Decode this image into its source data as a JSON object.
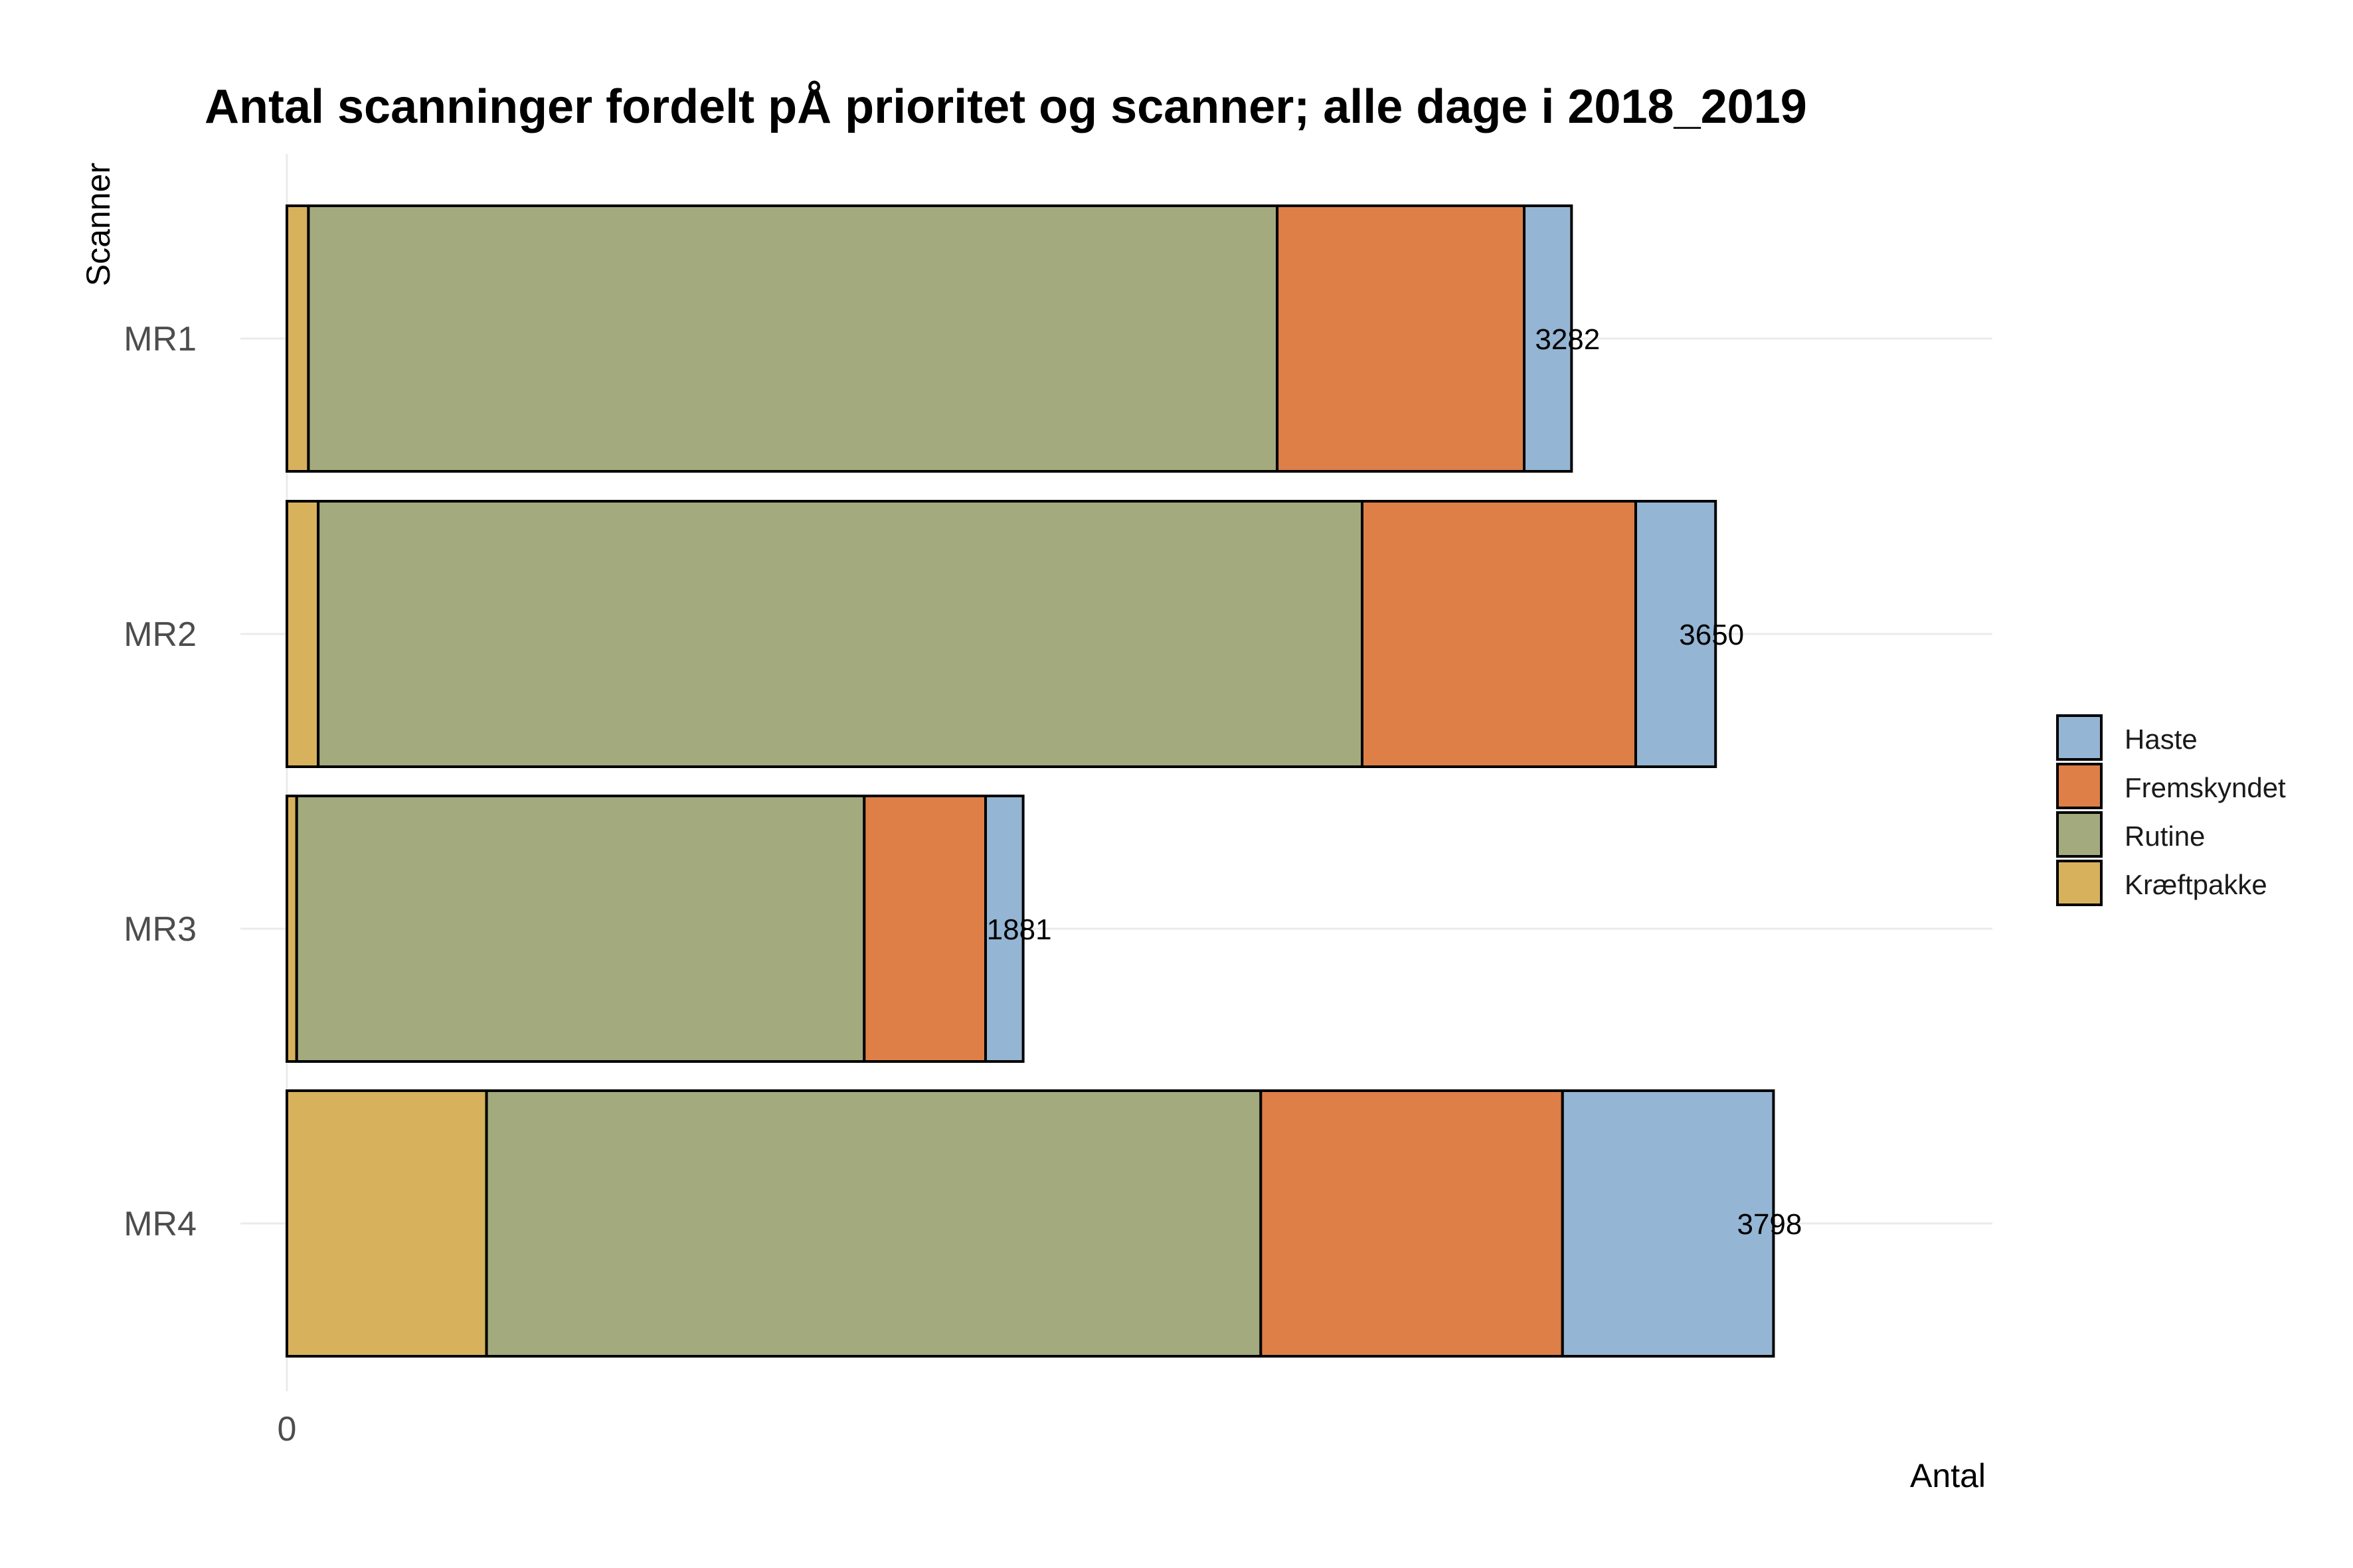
{
  "chart_data": {
    "type": "bar",
    "orientation": "horizontal",
    "stacked": true,
    "title": "Antal scanninger fordelt pÅ prioritet og scanner; alle dage i 2018_2019",
    "xlabel": "Antal",
    "ylabel": "Scanner",
    "categories": [
      "MR1",
      "MR2",
      "MR3",
      "MR4"
    ],
    "x_ticks": [
      {
        "value": 0,
        "label": "0"
      }
    ],
    "xlim": [
      0,
      4140
    ],
    "series": [
      {
        "name": "Kræftpakke",
        "color": "#D8B15C",
        "values": [
          55,
          80,
          25,
          510
        ]
      },
      {
        "name": "Rutine",
        "color": "#A3AA7E",
        "values": [
          2475,
          2667,
          1450,
          1978
        ]
      },
      {
        "name": "Fremskyndet",
        "color": "#DE7F48",
        "values": [
          631,
          699,
          310,
          771
        ]
      },
      {
        "name": "Haste",
        "color": "#94B5D3",
        "values": [
          121,
          204,
          96,
          539
        ]
      }
    ],
    "totals": [
      "3282",
      "3650",
      "1881",
      "3798"
    ],
    "legend": {
      "position": "right",
      "order": [
        "Haste",
        "Fremskyndet",
        "Rutine",
        "Kræftpakke"
      ]
    },
    "grid": {
      "major_x": true,
      "major_y": true,
      "color": "#ebebeb"
    }
  }
}
